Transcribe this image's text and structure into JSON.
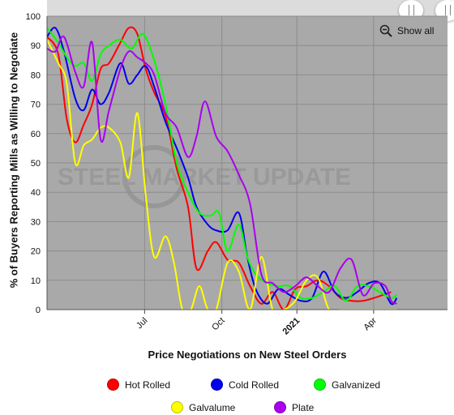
{
  "chart_data": {
    "type": "line",
    "ylabel": "% of Buyers Reporting Mills as Willing to Negotiate",
    "xlabel": "Price Negotiations on New Steel Orders",
    "ylim": [
      0,
      100
    ],
    "y_ticks": [
      "0",
      "10",
      "20",
      "30",
      "40",
      "50",
      "60",
      "70",
      "80",
      "90",
      "100"
    ],
    "x_range": [
      0,
      71
    ],
    "x_ticks": [
      {
        "label": "Jul",
        "x": 17.3,
        "bold": false
      },
      {
        "label": "Oct",
        "x": 31.0,
        "bold": false
      },
      {
        "label": "2021",
        "x": 44.3,
        "bold": true
      },
      {
        "label": "Apr",
        "x": 57.9,
        "bold": false
      }
    ],
    "grid": true,
    "legend_position": "bottom",
    "watermark": "STEEL MARKET UPDATE",
    "series": [
      {
        "name": "Hot Rolled",
        "color": "#ff0000",
        "values": [
          [
            0,
            93
          ],
          [
            2,
            87
          ],
          [
            3.5,
            65
          ],
          [
            5,
            57
          ],
          [
            6.5,
            63
          ],
          [
            8,
            70
          ],
          [
            9.5,
            82
          ],
          [
            11,
            84
          ],
          [
            13,
            91
          ],
          [
            14.5,
            96
          ],
          [
            16,
            94
          ],
          [
            17.5,
            82
          ],
          [
            19,
            74
          ],
          [
            21,
            66
          ],
          [
            23,
            48
          ],
          [
            25,
            35
          ],
          [
            26.5,
            14
          ],
          [
            28.5,
            20
          ],
          [
            30,
            23
          ],
          [
            32,
            17
          ],
          [
            34,
            16
          ],
          [
            36,
            8
          ],
          [
            38,
            2
          ],
          [
            40,
            6
          ],
          [
            42,
            0
          ],
          [
            44,
            7
          ],
          [
            46,
            8
          ],
          [
            48,
            10
          ],
          [
            50,
            8
          ],
          [
            52,
            4
          ],
          [
            54,
            3
          ],
          [
            56,
            3
          ],
          [
            58,
            4
          ],
          [
            61,
            6
          ]
        ]
      },
      {
        "name": "Cold Rolled",
        "color": "#0000ee",
        "values": [
          [
            0,
            93
          ],
          [
            1.5,
            96
          ],
          [
            3,
            88
          ],
          [
            5,
            72
          ],
          [
            6.5,
            68
          ],
          [
            8,
            75
          ],
          [
            9.5,
            70
          ],
          [
            11,
            74
          ],
          [
            13,
            84
          ],
          [
            14.5,
            77
          ],
          [
            16,
            80
          ],
          [
            17.5,
            83
          ],
          [
            19,
            76
          ],
          [
            21,
            64
          ],
          [
            23,
            55
          ],
          [
            25,
            45
          ],
          [
            26.5,
            35
          ],
          [
            28.5,
            29
          ],
          [
            30,
            27
          ],
          [
            32,
            27
          ],
          [
            34,
            33
          ],
          [
            35.5,
            18
          ],
          [
            37,
            7
          ],
          [
            39,
            2
          ],
          [
            41,
            7
          ],
          [
            43,
            5
          ],
          [
            45,
            3
          ],
          [
            47,
            4
          ],
          [
            49,
            13
          ],
          [
            51,
            6
          ],
          [
            53,
            4
          ],
          [
            55,
            6
          ],
          [
            57,
            9
          ],
          [
            59,
            9
          ],
          [
            61,
            2
          ],
          [
            62,
            4
          ]
        ]
      },
      {
        "name": "Galvanized",
        "color": "#00ff00",
        "values": [
          [
            0,
            96
          ],
          [
            2,
            91
          ],
          [
            3.5,
            86
          ],
          [
            5,
            83
          ],
          [
            6.5,
            84
          ],
          [
            8,
            78
          ],
          [
            9.5,
            87
          ],
          [
            11,
            90
          ],
          [
            13,
            92
          ],
          [
            15,
            89
          ],
          [
            17,
            94
          ],
          [
            19,
            85
          ],
          [
            21,
            70
          ],
          [
            23,
            50
          ],
          [
            25,
            40
          ],
          [
            27,
            33
          ],
          [
            29,
            32
          ],
          [
            30.5,
            33
          ],
          [
            32,
            20
          ],
          [
            34,
            29
          ],
          [
            35.5,
            18
          ],
          [
            37,
            12
          ],
          [
            39,
            9
          ],
          [
            41,
            8
          ],
          [
            43,
            8
          ],
          [
            45,
            4
          ],
          [
            47,
            4
          ],
          [
            49,
            6
          ],
          [
            51,
            8
          ],
          [
            53,
            3
          ],
          [
            55,
            8
          ],
          [
            57,
            8
          ],
          [
            59,
            6
          ],
          [
            61,
            4
          ],
          [
            62,
            5
          ]
        ]
      },
      {
        "name": "Galvalume",
        "color": "#ffff00",
        "values": [
          [
            0,
            92
          ],
          [
            2,
            84
          ],
          [
            3.5,
            77
          ],
          [
            5,
            50
          ],
          [
            6.5,
            56
          ],
          [
            8,
            58
          ],
          [
            9.5,
            62
          ],
          [
            11,
            62
          ],
          [
            13,
            57
          ],
          [
            14.5,
            45
          ],
          [
            16,
            67
          ],
          [
            17.5,
            39
          ],
          [
            19,
            18
          ],
          [
            21,
            25
          ],
          [
            22.5,
            16
          ],
          [
            24,
            0
          ],
          [
            25.5,
            0
          ],
          [
            27,
            8
          ],
          [
            28.5,
            0
          ],
          [
            30,
            0
          ],
          [
            32,
            16
          ],
          [
            34,
            13
          ],
          [
            36,
            0
          ],
          [
            38,
            18
          ],
          [
            40,
            0
          ],
          [
            42,
            0
          ],
          [
            44,
            3
          ],
          [
            46,
            10
          ],
          [
            48,
            11
          ],
          [
            50,
            0
          ],
          [
            52,
            0
          ],
          [
            54,
            0
          ],
          [
            56,
            0
          ],
          [
            58,
            0
          ],
          [
            60,
            0
          ],
          [
            62,
            0
          ]
        ]
      },
      {
        "name": "Plate",
        "color": "#aa00ee",
        "values": [
          [
            0,
            89
          ],
          [
            1.5,
            88
          ],
          [
            3,
            93
          ],
          [
            5,
            81
          ],
          [
            6.5,
            76
          ],
          [
            8,
            91
          ],
          [
            9.5,
            58
          ],
          [
            11,
            68
          ],
          [
            13,
            82
          ],
          [
            14.5,
            88
          ],
          [
            16,
            86
          ],
          [
            17.5,
            84
          ],
          [
            19,
            80
          ],
          [
            21,
            67
          ],
          [
            23,
            62
          ],
          [
            25,
            52
          ],
          [
            26.5,
            59
          ],
          [
            28,
            71
          ],
          [
            30,
            59
          ],
          [
            32,
            54
          ],
          [
            34,
            46
          ],
          [
            36,
            36
          ],
          [
            38,
            12
          ],
          [
            40,
            9
          ],
          [
            42,
            6
          ],
          [
            44,
            8
          ],
          [
            46,
            11
          ],
          [
            48,
            8
          ],
          [
            50,
            6
          ],
          [
            52,
            14
          ],
          [
            54,
            17
          ],
          [
            56,
            5
          ],
          [
            58,
            9
          ],
          [
            60,
            8
          ],
          [
            61,
            3
          ],
          [
            62,
            2
          ]
        ]
      }
    ]
  },
  "legend": {
    "items": [
      {
        "label": "Hot Rolled",
        "color": "#ff0000"
      },
      {
        "label": "Cold Rolled",
        "color": "#0000ee"
      },
      {
        "label": "Galvanized",
        "color": "#00ff00"
      },
      {
        "label": "Galvalume",
        "color": "#ffff00"
      },
      {
        "label": "Plate",
        "color": "#aa00ee"
      }
    ]
  },
  "controls": {
    "show_all_label": "Show all"
  },
  "colors": {
    "plot_background": "#a9a9a9",
    "grid": "#8c8c8c"
  }
}
